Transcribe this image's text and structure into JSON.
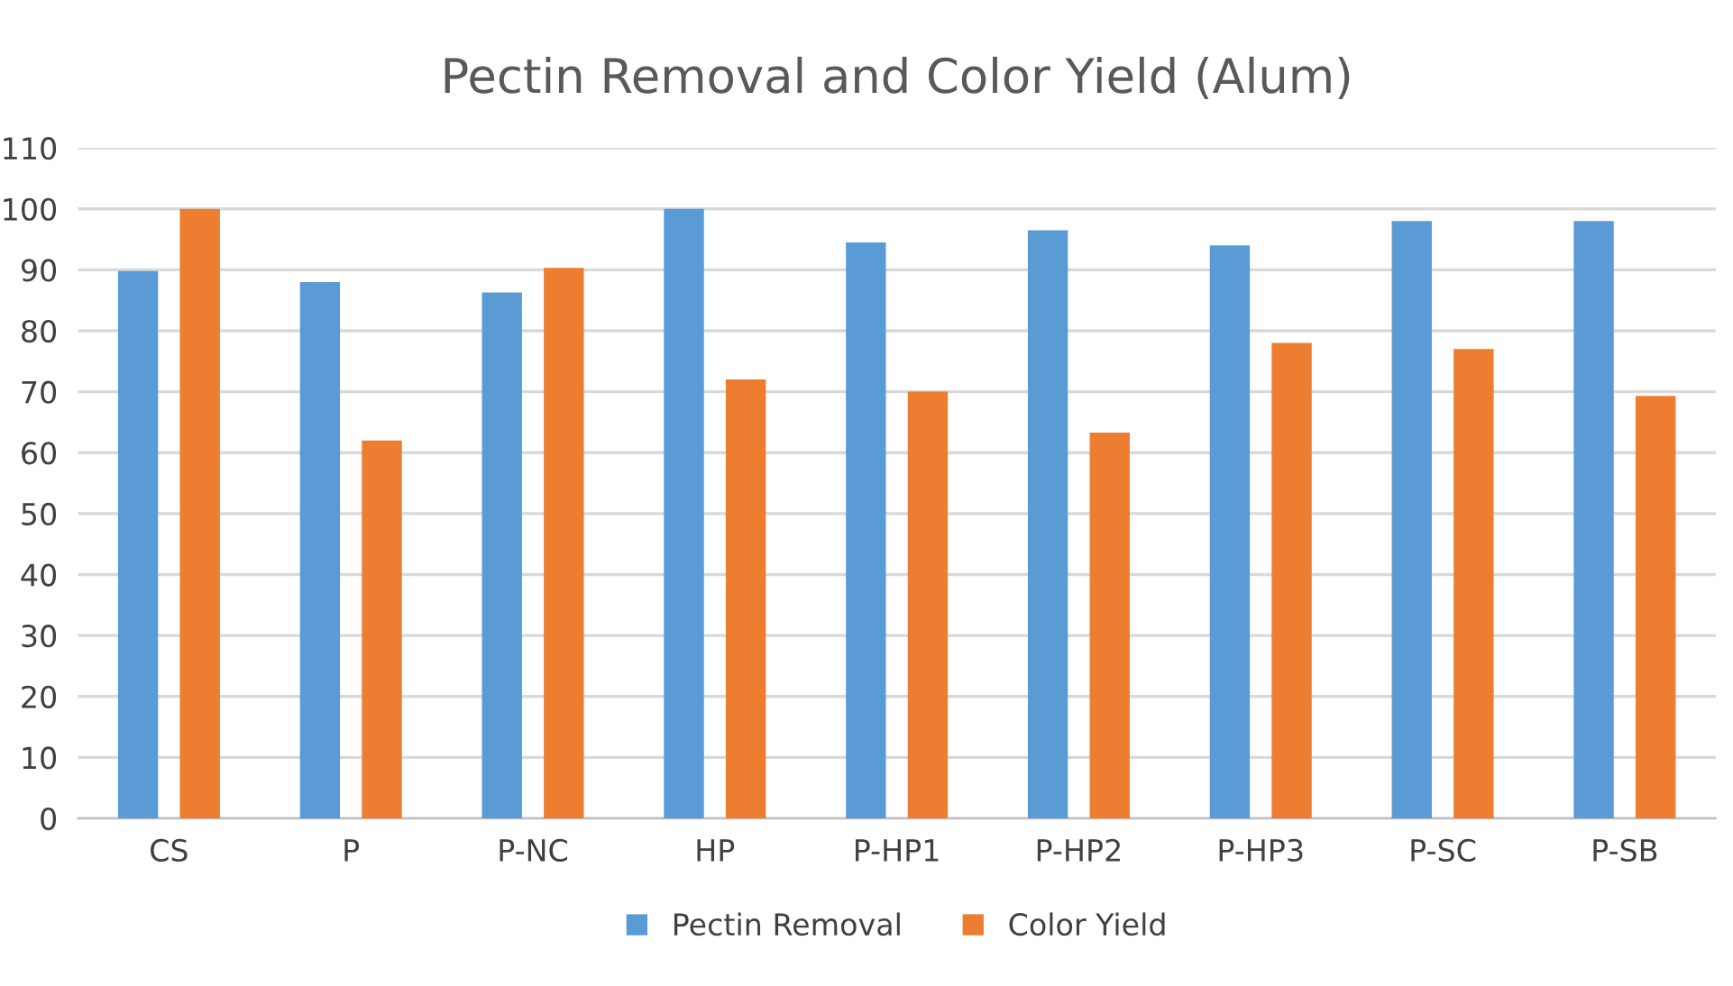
{
  "chart_data": {
    "type": "bar",
    "title": "Pectin Removal and Color Yield (Alum)",
    "categories": [
      "CS",
      "P",
      "P-NC",
      "HP",
      "P-HP1",
      "P-HP2",
      "P-HP3",
      "P-SC",
      "P-SB"
    ],
    "series": [
      {
        "name": "Pectin Removal",
        "color": "#5b9bd5",
        "values": [
          89.8,
          88,
          86.3,
          100,
          94.5,
          96.5,
          94,
          98,
          98
        ]
      },
      {
        "name": "Color Yield",
        "color": "#ed7d31",
        "values": [
          100,
          62,
          90.3,
          72,
          70,
          63.3,
          78,
          77,
          69.3
        ]
      }
    ],
    "ylim": [
      0,
      110
    ],
    "yticks": [
      0,
      10,
      20,
      30,
      40,
      50,
      60,
      70,
      80,
      90,
      100,
      110
    ],
    "grid": "y",
    "legend": "bottom"
  }
}
